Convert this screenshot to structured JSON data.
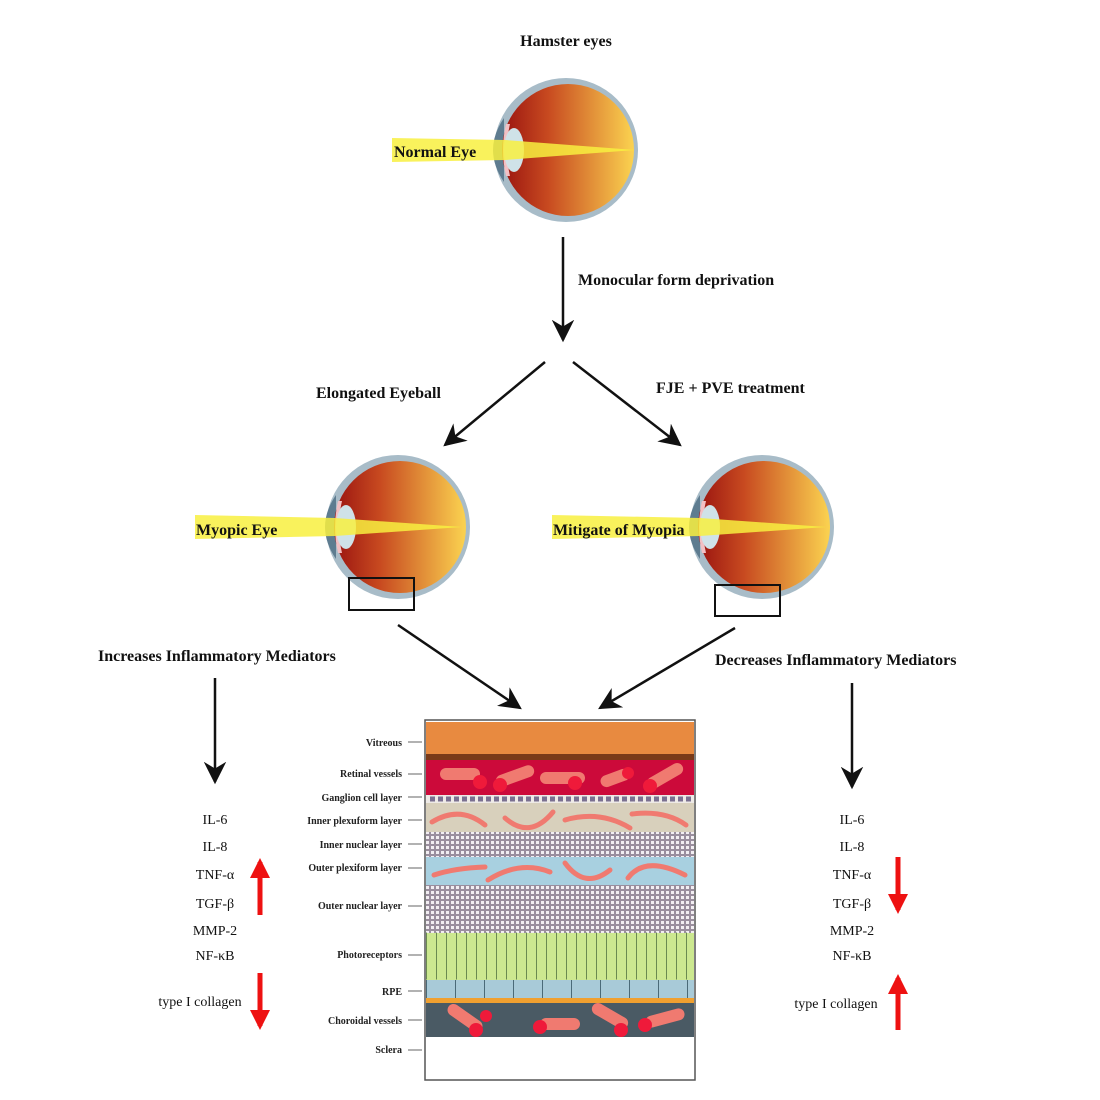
{
  "title": "Hamster eyes",
  "eyes": {
    "normal": "Normal Eye",
    "myopic": "Myopic Eye",
    "mitigate": "Mitigate of Myopia"
  },
  "steps": {
    "deprivation": "Monocular form deprivation",
    "elongated": "Elongated Eyeball",
    "treatment": "FJE + PVE treatment",
    "increases": "Increases Inflammatory Mediators",
    "decreases": "Decreases Inflammatory Mediators"
  },
  "mediators": [
    "IL-6",
    "IL-8",
    "TNF-α",
    "TGF-β",
    "MMP-2",
    "NF-κB"
  ],
  "collagen": "type I collagen",
  "left_effects": {
    "mediators": "up",
    "collagen": "down"
  },
  "right_effects": {
    "mediators": "down",
    "collagen": "up"
  },
  "retina_layers": [
    "Vitreous",
    "Retinal vessels",
    "Ganglion cell layer",
    "Inner plexuform layer",
    "Inner nuclear layer",
    "Outer plexiform layer",
    "Outer nuclear layer",
    "Photoreceptors",
    "RPE",
    "Choroidal vessels",
    "Sclera"
  ],
  "colors": {
    "arrow": "#111111",
    "effect_arrow": "#ee1111",
    "beam": "#f8f040",
    "vitreous": "#e88a40",
    "retinal_vessels": "#cc0a3a",
    "choroid": "#4a5a64"
  }
}
